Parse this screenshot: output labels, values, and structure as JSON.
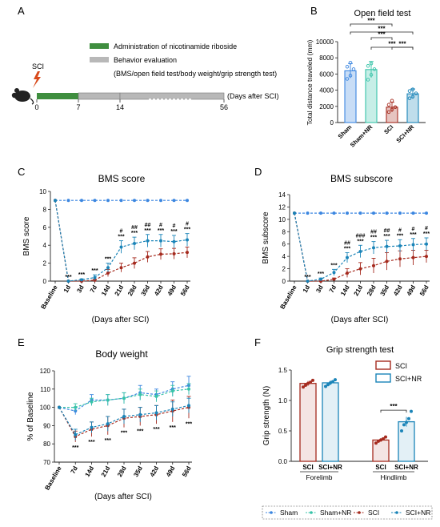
{
  "panel_letters": {
    "a": "A",
    "b": "B",
    "c": "C",
    "d": "D",
    "e": "E",
    "f": "F"
  },
  "colors": {
    "sham": "#3b86e0",
    "sham_nr": "#37c3a8",
    "sci": "#a52a1e",
    "sci_nr": "#1a84b8",
    "admin": "#3f8e3f",
    "eval": "#b8b8b8",
    "sig": "#222222"
  },
  "timeline": {
    "sci_label": "SCI",
    "legend_admin": "Administration of nicotinamide riboside",
    "legend_eval": "Behavior evaluation",
    "legend_eval_detail": "(BMS/open field test/body weight/grip strength test)",
    "ticks": [
      "0",
      "7",
      "14",
      "56"
    ],
    "axis_label": "(Days after SCI)"
  },
  "legend_bottom": {
    "sham": "Sham",
    "sham_nr": "Sham+NR",
    "sci": "SCI",
    "sci_nr": "SCI+NR"
  },
  "chart_data": [
    {
      "panel": "B",
      "type": "bar",
      "title": "Open field test",
      "ylabel": "Total distance traveled (mm)",
      "ylim": [
        0,
        10000
      ],
      "yticks": [
        "0",
        "2000",
        "4000",
        "6000",
        "8000",
        "10000"
      ],
      "categories": [
        "Sham",
        "Sham+NR",
        "SCI",
        "SCI+NR"
      ],
      "values": [
        6400,
        6550,
        1900,
        3550
      ],
      "errors": [
        900,
        1000,
        600,
        600
      ],
      "points": [
        [
          5400,
          5800,
          6600,
          6900,
          7400
        ],
        [
          5300,
          5900,
          6600,
          7000,
          7300
        ],
        [
          1300,
          1600,
          1900,
          2200,
          2700
        ],
        [
          3000,
          3200,
          3600,
          3900,
          4100
        ]
      ],
      "significance": [
        "***",
        "***",
        "***",
        "***",
        "***"
      ]
    },
    {
      "panel": "C",
      "type": "line",
      "title": "BMS score",
      "ylabel": "BMS score",
      "xlabel": "(Days after SCI)",
      "ylim": [
        0,
        10
      ],
      "yticks": [
        "0",
        "2",
        "4",
        "6",
        "8",
        "10"
      ],
      "categories": [
        "Baseline",
        "1d",
        "3d",
        "7d",
        "14d",
        "21d",
        "28d",
        "35d",
        "42d",
        "49d",
        "56d"
      ],
      "series": [
        {
          "name": "Sham",
          "values": [
            9,
            9,
            9,
            9,
            9,
            9,
            9,
            9,
            9,
            9,
            9
          ]
        },
        {
          "name": "SCI",
          "values": [
            9,
            0,
            0,
            0.1,
            0.9,
            1.5,
            2,
            2.7,
            3,
            3.05,
            3.2
          ],
          "errors": [
            0,
            0,
            0,
            0.1,
            0.4,
            0.5,
            0.6,
            0.6,
            0.6,
            0.6,
            0.6
          ]
        },
        {
          "name": "SCI+NR",
          "values": [
            9,
            0,
            0.15,
            0.4,
            1.5,
            3.8,
            4.2,
            4.5,
            4.5,
            4.4,
            4.6
          ],
          "errors": [
            0,
            0,
            0.1,
            0.3,
            0.5,
            0.7,
            0.7,
            0.7,
            0.7,
            0.7,
            0.7
          ]
        }
      ],
      "annotations": {
        "stars": [
          "",
          "***",
          "***",
          "***",
          "***",
          "***",
          "***",
          "***",
          "***",
          "***",
          "***"
        ],
        "hashes": [
          "",
          "",
          "",
          "",
          "",
          "#",
          "##",
          "##",
          "#",
          "#",
          "#"
        ]
      }
    },
    {
      "panel": "D",
      "type": "line",
      "title": "BMS subscore",
      "ylabel": "BMS subscore",
      "xlabel": "(Days after SCI)",
      "ylim": [
        0,
        14
      ],
      "yticks": [
        "0",
        "2",
        "4",
        "6",
        "8",
        "10",
        "12",
        "14"
      ],
      "categories": [
        "Baseline",
        "1d",
        "3d",
        "7d",
        "14d",
        "21d",
        "28d",
        "35d",
        "42d",
        "49d",
        "56d"
      ],
      "series": [
        {
          "name": "Sham",
          "values": [
            11,
            11,
            11,
            11,
            11,
            11,
            11,
            11,
            11,
            11,
            11
          ]
        },
        {
          "name": "SCI",
          "values": [
            11,
            0,
            0,
            0.3,
            1.3,
            2,
            2.5,
            3.2,
            3.6,
            3.8,
            4
          ],
          "errors": [
            0,
            0,
            0,
            0.2,
            0.7,
            1,
            1.2,
            1.4,
            1.3,
            1.2,
            1
          ]
        },
        {
          "name": "SCI+NR",
          "values": [
            11,
            0,
            0.3,
            1.4,
            3.8,
            4.8,
            5.4,
            5.6,
            5.7,
            5.9,
            6
          ],
          "errors": [
            0,
            0,
            0.2,
            0.5,
            0.8,
            1,
            1,
            1,
            1,
            1,
            1
          ]
        }
      ],
      "annotations": {
        "stars": [
          "",
          "***",
          "***",
          "***",
          "***",
          "***",
          "***",
          "***",
          "***",
          "***",
          "***"
        ],
        "hashes": [
          "",
          "",
          "",
          "",
          "##",
          "###",
          "##",
          "##",
          "#",
          "#",
          "#"
        ]
      }
    },
    {
      "panel": "E",
      "type": "line",
      "title": "Body weight",
      "ylabel": "% of Baseline",
      "xlabel": "(Days after SCI)",
      "ylim": [
        70,
        120
      ],
      "yticks": [
        "70",
        "80",
        "90",
        "100",
        "110",
        "120"
      ],
      "categories": [
        "Baseline",
        "7d",
        "14d",
        "21d",
        "28d",
        "35d",
        "42d",
        "49d",
        "56d"
      ],
      "series": [
        {
          "name": "Sham",
          "values": [
            100,
            98,
            104,
            104,
            105,
            108,
            107,
            110,
            112
          ],
          "errors": [
            0,
            2,
            3,
            3,
            3,
            4,
            3,
            4,
            5
          ]
        },
        {
          "name": "Sham+NR",
          "values": [
            100,
            100,
            103,
            104,
            105,
            107,
            106,
            109,
            110
          ],
          "errors": [
            0,
            2,
            2,
            3,
            3,
            3,
            3,
            3,
            3
          ]
        },
        {
          "name": "SCI",
          "values": [
            100,
            84,
            88,
            90,
            94,
            95,
            96,
            98,
            100
          ],
          "errors": [
            0,
            3,
            4,
            5,
            5,
            5,
            5,
            6,
            6
          ]
        },
        {
          "name": "SCI+NR",
          "values": [
            100,
            85,
            89,
            91,
            95,
            96,
            97,
            99,
            101
          ],
          "errors": [
            0,
            3,
            3,
            4,
            4,
            4,
            4,
            4,
            4
          ]
        }
      ],
      "annotations": {
        "stars": [
          "",
          "***",
          "***",
          "***",
          "***",
          "***",
          "***",
          "***",
          "***"
        ]
      }
    },
    {
      "panel": "F",
      "type": "bar",
      "title": "Grip strength test",
      "ylabel": "Grip strength (N)",
      "ylim": [
        0,
        1.5
      ],
      "yticks": [
        "0.0",
        "0.5",
        "1.0",
        "1.5"
      ],
      "groups": [
        "Forelimb",
        "Hindlimb"
      ],
      "categories": [
        "SCI",
        "SCI+NR"
      ],
      "series": [
        {
          "name": "SCI",
          "values": [
            1.28,
            0.35
          ],
          "errors": [
            0.04,
            0.03
          ],
          "points": [
            [
              1.22,
              1.25,
              1.28,
              1.3,
              1.33
            ],
            [
              0.3,
              0.33,
              0.35,
              0.37,
              0.4
            ]
          ]
        },
        {
          "name": "SCI+NR",
          "values": [
            1.29,
            0.65
          ],
          "errors": [
            0.04,
            0.08
          ],
          "points": [
            [
              1.23,
              1.26,
              1.29,
              1.31,
              1.34
            ],
            [
              0.5,
              0.6,
              0.64,
              0.7,
              0.82
            ]
          ]
        }
      ],
      "significance": "***"
    }
  ]
}
